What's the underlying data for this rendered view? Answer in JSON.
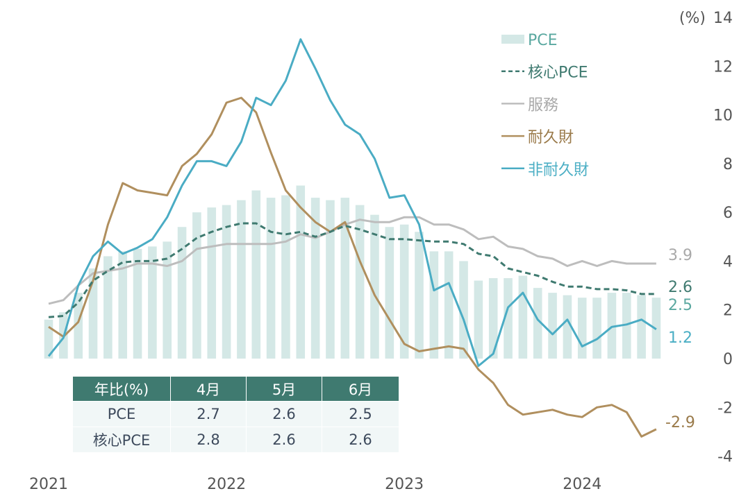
{
  "chart_data": {
    "type": "bar+line",
    "unit_label": "(%)",
    "ylim": [
      -4,
      14
    ],
    "yticks": [
      14,
      12,
      10,
      8,
      6,
      4,
      2,
      0,
      -2,
      -4
    ],
    "year_labels": [
      "2021",
      "2022",
      "2023",
      "2024"
    ],
    "x_start": "2021-01",
    "x_end": "2024-06",
    "series": [
      {
        "name": "PCE",
        "type": "bar",
        "color": "#d4e8e6",
        "label_color": "#5aa8a0",
        "end_label": "2.5",
        "values": [
          1.6,
          1.9,
          2.7,
          3.7,
          4.2,
          4.4,
          4.5,
          4.6,
          4.8,
          5.4,
          6.0,
          6.2,
          6.3,
          6.5,
          6.9,
          6.6,
          6.7,
          7.1,
          6.6,
          6.5,
          6.6,
          6.3,
          5.9,
          5.4,
          5.5,
          5.2,
          4.4,
          4.4,
          4.0,
          3.2,
          3.3,
          3.3,
          3.4,
          2.9,
          2.7,
          2.6,
          2.5,
          2.5,
          2.7,
          2.7,
          2.6,
          2.5
        ]
      },
      {
        "name": "核心PCE",
        "type": "dashed",
        "color": "#3f7a70",
        "label_color": "#3f7a70",
        "end_label": "2.6",
        "values": [
          1.7,
          1.75,
          2.3,
          3.2,
          3.6,
          3.95,
          4.0,
          4.0,
          4.1,
          4.5,
          4.95,
          5.2,
          5.4,
          5.55,
          5.55,
          5.2,
          5.1,
          5.2,
          5.0,
          5.2,
          5.45,
          5.3,
          5.1,
          4.9,
          4.9,
          4.85,
          4.8,
          4.8,
          4.7,
          4.3,
          4.2,
          3.7,
          3.55,
          3.4,
          3.15,
          2.95,
          2.95,
          2.85,
          2.85,
          2.8,
          2.65,
          2.65
        ]
      },
      {
        "name": "服務",
        "type": "line",
        "color": "#bdbdbd",
        "label_color": "#a9a9a9",
        "end_label": "3.9",
        "values": [
          2.25,
          2.4,
          3.0,
          3.5,
          3.6,
          3.7,
          3.9,
          3.9,
          3.8,
          4.0,
          4.5,
          4.6,
          4.7,
          4.7,
          4.7,
          4.7,
          4.8,
          5.1,
          4.95,
          5.2,
          5.5,
          5.7,
          5.6,
          5.6,
          5.8,
          5.8,
          5.5,
          5.5,
          5.3,
          4.9,
          5.0,
          4.6,
          4.5,
          4.2,
          4.1,
          3.8,
          4.0,
          3.8,
          4.0,
          3.9,
          3.9,
          3.9
        ]
      },
      {
        "name": "耐久財",
        "type": "line",
        "color": "#b08f5e",
        "label_color": "#9a7a4a",
        "end_label": "-2.9",
        "values": [
          1.3,
          0.9,
          1.5,
          3.2,
          5.5,
          7.2,
          6.9,
          6.8,
          6.7,
          7.9,
          8.4,
          9.2,
          10.5,
          10.7,
          10.1,
          8.45,
          6.9,
          6.2,
          5.6,
          5.2,
          5.6,
          4.0,
          2.6,
          1.6,
          0.6,
          0.3,
          0.4,
          0.5,
          0.4,
          -0.45,
          -1.0,
          -1.9,
          -2.3,
          -2.2,
          -2.1,
          -2.3,
          -2.4,
          -2.0,
          -1.9,
          -2.2,
          -3.2,
          -2.9
        ]
      },
      {
        "name": "非耐久財",
        "type": "line",
        "color": "#4aacc4",
        "label_color": "#4aaec4",
        "end_label": "1.2",
        "values": [
          0.1,
          0.85,
          3.0,
          4.2,
          4.8,
          4.3,
          4.55,
          4.9,
          5.8,
          7.1,
          8.1,
          8.1,
          7.9,
          8.9,
          10.7,
          10.4,
          11.4,
          13.1,
          11.9,
          10.6,
          9.6,
          9.2,
          8.2,
          6.6,
          6.7,
          5.5,
          2.8,
          3.1,
          1.6,
          -0.3,
          0.2,
          2.1,
          2.7,
          1.6,
          1.0,
          1.6,
          0.5,
          0.8,
          1.3,
          1.4,
          1.6,
          1.2
        ]
      }
    ],
    "legend_placement": "top-right",
    "table": {
      "headers": [
        "年比(%)",
        "4月",
        "5月",
        "6月"
      ],
      "rows": [
        [
          "PCE",
          "2.7",
          "2.6",
          "2.5"
        ],
        [
          "核心PCE",
          "2.8",
          "2.6",
          "2.6"
        ]
      ]
    }
  }
}
